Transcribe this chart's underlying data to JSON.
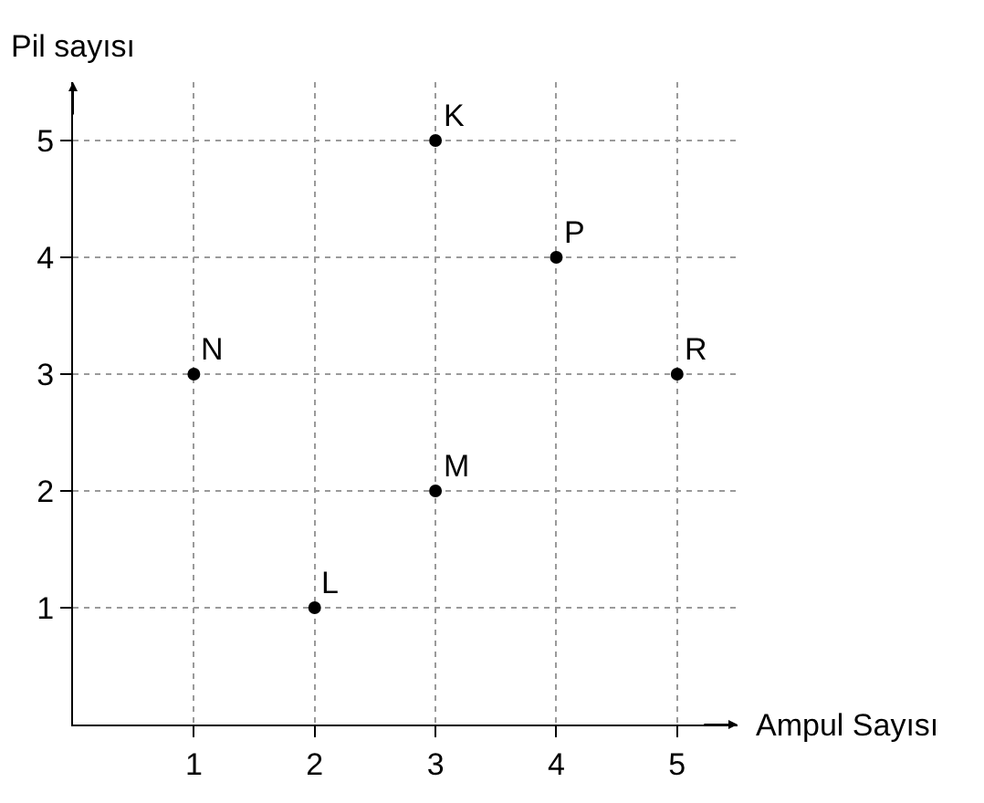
{
  "chart_data": {
    "type": "scatter",
    "xlabel": "Ampul Sayısı",
    "ylabel": "Pil sayısı",
    "x": [
      3,
      4,
      1,
      5,
      3,
      2
    ],
    "series": [
      {
        "color": "#000000",
        "values": [
          5,
          4,
          3,
          3,
          2,
          1
        ]
      }
    ],
    "marker": "circle",
    "xlim": [
      0,
      5.5
    ],
    "ylim": [
      0,
      5.5
    ],
    "xticks": [
      1,
      2,
      3,
      4,
      5
    ],
    "yticks": [
      1,
      2,
      3,
      4,
      5
    ],
    "grid": true,
    "annotations": [
      {
        "text": "K",
        "x": 3,
        "y": 5
      },
      {
        "text": "P",
        "x": 4,
        "y": 4
      },
      {
        "text": "N",
        "x": 1,
        "y": 3
      },
      {
        "text": "R",
        "x": 5,
        "y": 3
      },
      {
        "text": "M",
        "x": 3,
        "y": 2
      },
      {
        "text": "L",
        "x": 2,
        "y": 1
      }
    ]
  }
}
